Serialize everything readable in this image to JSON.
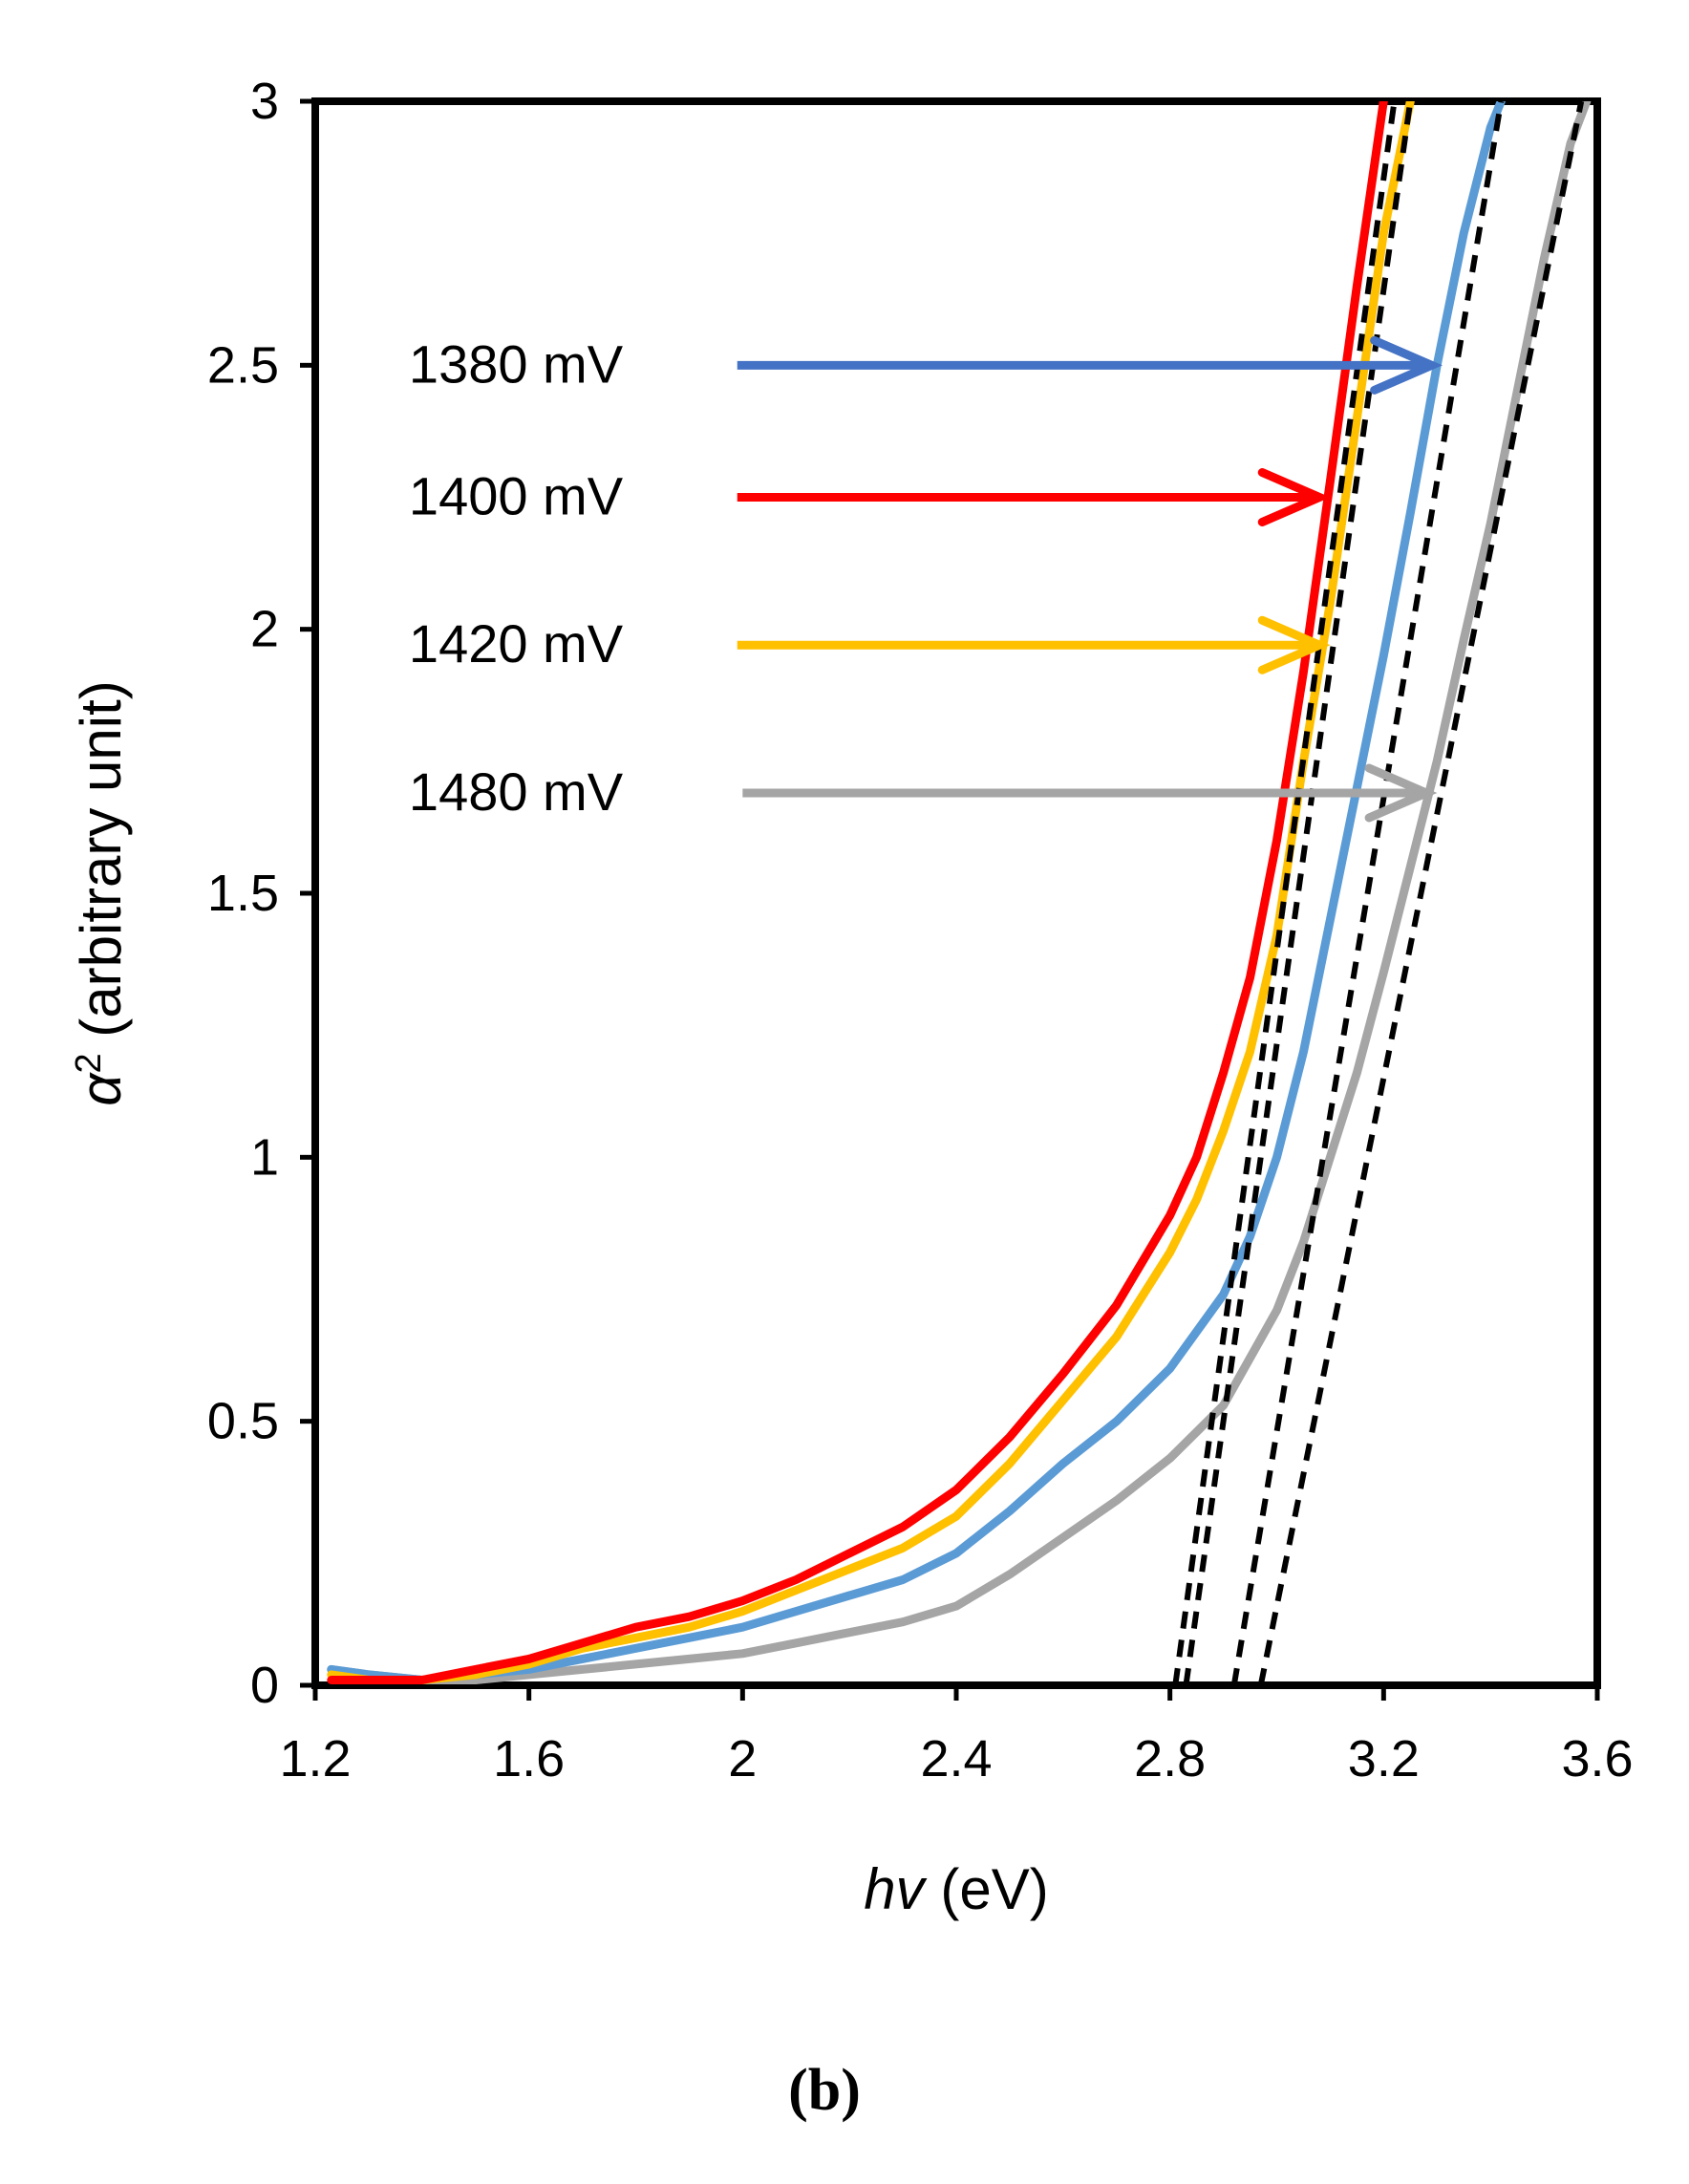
{
  "chart_data": {
    "type": "line",
    "title": "",
    "panel_label": "(b)",
    "xlabel_italic": "hv",
    "xlabel_rest": " (eV)",
    "ylabel_symbol": "α",
    "ylabel_sup": "2",
    "ylabel_rest": " (arbitrary unit)",
    "xlim": [
      1.2,
      3.6
    ],
    "ylim": [
      0,
      3
    ],
    "x_ticks": [
      "1.2",
      "1.6",
      "2",
      "2.4",
      "2.8",
      "3.2",
      "3.6"
    ],
    "y_ticks": [
      "0",
      "0.5",
      "1",
      "1.5",
      "2",
      "2.5",
      "3"
    ],
    "x_tick_values": [
      1.2,
      1.6,
      2.0,
      2.4,
      2.8,
      3.2,
      3.6
    ],
    "y_tick_values": [
      0,
      0.5,
      1,
      1.5,
      2,
      2.5,
      3
    ],
    "grid": false,
    "series": [
      {
        "name": "1480 mV",
        "color": "#a5a5a5",
        "x": [
          1.23,
          1.3,
          1.4,
          1.5,
          1.6,
          1.7,
          1.8,
          1.9,
          2.0,
          2.1,
          2.2,
          2.3,
          2.4,
          2.5,
          2.6,
          2.7,
          2.8,
          2.9,
          3.0,
          3.05,
          3.1,
          3.15,
          3.2,
          3.25,
          3.3,
          3.35,
          3.4,
          3.45,
          3.5,
          3.55,
          3.58
        ],
        "y": [
          0.03,
          0.02,
          0.01,
          0.01,
          0.02,
          0.03,
          0.04,
          0.05,
          0.06,
          0.08,
          0.1,
          0.12,
          0.15,
          0.21,
          0.28,
          0.35,
          0.43,
          0.53,
          0.71,
          0.84,
          1.0,
          1.16,
          1.35,
          1.55,
          1.75,
          1.98,
          2.2,
          2.45,
          2.7,
          2.92,
          3.0
        ]
      },
      {
        "name": "1380 mV",
        "color": "#5b9bd5",
        "x": [
          1.23,
          1.3,
          1.4,
          1.5,
          1.6,
          1.7,
          1.8,
          1.9,
          2.0,
          2.1,
          2.2,
          2.3,
          2.4,
          2.5,
          2.6,
          2.7,
          2.8,
          2.9,
          2.95,
          3.0,
          3.05,
          3.1,
          3.15,
          3.2,
          3.25,
          3.3,
          3.35,
          3.4,
          3.42
        ],
        "y": [
          0.03,
          0.02,
          0.01,
          0.02,
          0.03,
          0.05,
          0.07,
          0.09,
          0.11,
          0.14,
          0.17,
          0.2,
          0.25,
          0.33,
          0.42,
          0.5,
          0.6,
          0.74,
          0.85,
          1.0,
          1.2,
          1.45,
          1.7,
          1.95,
          2.22,
          2.5,
          2.75,
          2.95,
          3.0
        ]
      },
      {
        "name": "1420 mV",
        "color": "#ffc000",
        "x": [
          1.23,
          1.3,
          1.4,
          1.5,
          1.6,
          1.7,
          1.8,
          1.9,
          2.0,
          2.1,
          2.2,
          2.3,
          2.4,
          2.5,
          2.6,
          2.7,
          2.8,
          2.85,
          2.9,
          2.95,
          3.0,
          3.05,
          3.1,
          3.15,
          3.2,
          3.25
        ],
        "y": [
          0.02,
          0.01,
          0.01,
          0.02,
          0.04,
          0.07,
          0.09,
          0.11,
          0.14,
          0.18,
          0.22,
          0.26,
          0.32,
          0.42,
          0.54,
          0.66,
          0.82,
          0.92,
          1.05,
          1.2,
          1.42,
          1.75,
          2.05,
          2.4,
          2.75,
          3.0
        ]
      },
      {
        "name": "1400 mV",
        "color": "#ff0000",
        "x": [
          1.23,
          1.3,
          1.4,
          1.5,
          1.6,
          1.7,
          1.8,
          1.9,
          2.0,
          2.1,
          2.2,
          2.3,
          2.4,
          2.5,
          2.6,
          2.7,
          2.8,
          2.85,
          2.9,
          2.95,
          3.0,
          3.05,
          3.1,
          3.15,
          3.2
        ],
        "y": [
          0.01,
          0.01,
          0.01,
          0.03,
          0.05,
          0.08,
          0.11,
          0.13,
          0.16,
          0.2,
          0.25,
          0.3,
          0.37,
          0.47,
          0.59,
          0.72,
          0.89,
          1.0,
          1.16,
          1.34,
          1.6,
          1.92,
          2.28,
          2.65,
          3.0
        ]
      }
    ],
    "tangent_lines": [
      {
        "x": [
          2.81,
          3.22
        ],
        "y": [
          0,
          3
        ]
      },
      {
        "x": [
          2.83,
          3.25
        ],
        "y": [
          0,
          3
        ]
      },
      {
        "x": [
          2.92,
          3.42
        ],
        "y": [
          0,
          3
        ]
      },
      {
        "x": [
          2.97,
          3.57
        ],
        "y": [
          0,
          3
        ]
      }
    ],
    "annotations": [
      {
        "label": "1380 mV",
        "color": "#4472c4",
        "label_y": 2.5,
        "arrow_from": [
          1.99,
          2.5
        ],
        "arrow_to": [
          3.29,
          2.5
        ]
      },
      {
        "label": "1400 mV",
        "color": "#ff0000",
        "label_y": 2.25,
        "arrow_from": [
          1.99,
          2.25
        ],
        "arrow_to": [
          3.08,
          2.25
        ]
      },
      {
        "label": "1420 mV",
        "color": "#ffc000",
        "label_y": 1.97,
        "arrow_from": [
          1.99,
          1.97
        ],
        "arrow_to": [
          3.08,
          1.97
        ]
      },
      {
        "label": "1480 mV",
        "color": "#a5a5a5",
        "label_y": 1.69,
        "arrow_from": [
          2.0,
          1.69
        ],
        "arrow_to": [
          3.28,
          1.69
        ]
      }
    ]
  }
}
